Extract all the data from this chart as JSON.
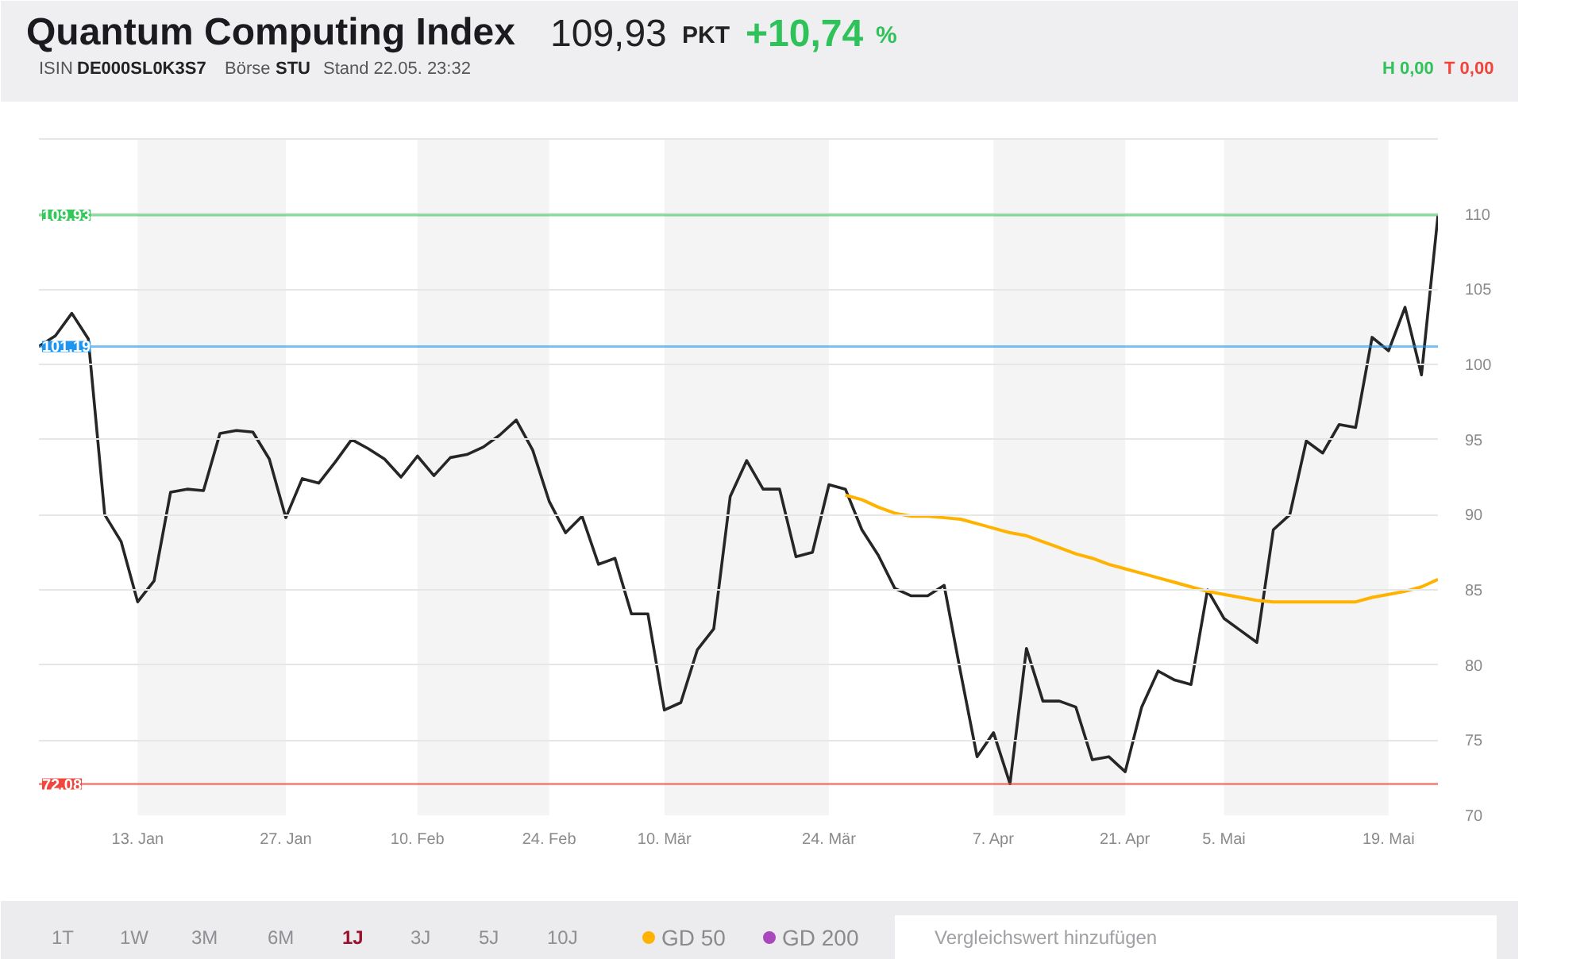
{
  "chart_data": {
    "type": "line",
    "title": "Quantum Computing Index",
    "categories": [
      null,
      null,
      null,
      null,
      null,
      null,
      "13. Jan",
      null,
      null,
      null,
      null,
      null,
      null,
      null,
      null,
      "27. Jan",
      null,
      null,
      null,
      null,
      null,
      null,
      null,
      "10. Feb",
      null,
      null,
      null,
      null,
      null,
      null,
      null,
      "24. Feb",
      null,
      null,
      null,
      null,
      null,
      null,
      "10. Mär",
      null,
      null,
      null,
      null,
      null,
      null,
      null,
      null,
      null,
      "24. Mär",
      null,
      null,
      null,
      null,
      null,
      null,
      null,
      null,
      null,
      "7. Apr",
      null,
      null,
      null,
      null,
      null,
      null,
      null,
      "21. Apr",
      null,
      null,
      null,
      null,
      null,
      "5. Mai",
      null,
      null,
      null,
      null,
      null,
      null,
      null,
      null,
      null,
      "19. Mai",
      null,
      null,
      null
    ],
    "series": [
      {
        "color": "#262626",
        "values": [
          101.2,
          101.9,
          103.4,
          101.7,
          90.0,
          88.2,
          84.2,
          85.6,
          91.5,
          91.7,
          91.6,
          95.4,
          95.6,
          95.5,
          93.7,
          89.8,
          92.4,
          92.1,
          93.5,
          95.0,
          94.4,
          93.7,
          92.5,
          93.9,
          92.6,
          93.8,
          94.0,
          94.5,
          95.3,
          96.3,
          94.3,
          90.9,
          88.8,
          89.9,
          86.7,
          87.1,
          83.4,
          83.4,
          77.0,
          77.5,
          81.0,
          82.4,
          91.2,
          93.6,
          91.7,
          91.7,
          87.2,
          87.5,
          92.0,
          91.7,
          89.0,
          87.3,
          85.1,
          84.6,
          84.6,
          85.3,
          79.5,
          73.9,
          75.5,
          72.1,
          81.1,
          77.6,
          77.6,
          77.2,
          73.7,
          73.9,
          72.9,
          77.2,
          79.6,
          79.0,
          78.7,
          85.0,
          83.1,
          82.3,
          81.5,
          89.0,
          90.0,
          94.9,
          94.1,
          96.0,
          95.8,
          101.8,
          100.9,
          103.8,
          99.3,
          109.9
        ]
      },
      {
        "name": "GD 50",
        "color": "#ffb300",
        "values": [
          null,
          null,
          null,
          null,
          null,
          null,
          null,
          null,
          null,
          null,
          null,
          null,
          null,
          null,
          null,
          null,
          null,
          null,
          null,
          null,
          null,
          null,
          null,
          null,
          null,
          null,
          null,
          null,
          null,
          null,
          null,
          null,
          null,
          null,
          null,
          null,
          null,
          null,
          null,
          null,
          null,
          null,
          null,
          null,
          null,
          null,
          null,
          null,
          null,
          91.3,
          91.0,
          90.5,
          90.1,
          89.9,
          89.9,
          89.8,
          89.7,
          89.4,
          89.1,
          88.8,
          88.6,
          88.2,
          87.8,
          87.4,
          87.1,
          86.7,
          86.4,
          86.1,
          85.8,
          85.5,
          85.2,
          84.9,
          84.7,
          84.5,
          84.3,
          84.2,
          84.2,
          84.2,
          84.2,
          84.2,
          84.2,
          84.5,
          84.7,
          84.9,
          85.2,
          85.7
        ]
      },
      {
        "name": "GD 200",
        "color": "#ab47bc",
        "values": [
          null,
          null,
          null,
          null,
          null,
          null,
          null,
          null,
          null,
          null,
          null,
          null,
          null,
          null,
          null,
          null,
          null,
          null,
          null,
          null,
          null,
          null,
          null,
          null,
          null,
          null,
          null,
          null,
          null,
          null,
          null,
          null,
          null,
          null,
          null,
          null,
          null,
          null,
          null,
          null,
          null,
          null,
          null,
          null,
          null,
          null,
          null,
          null,
          null,
          null,
          null,
          null,
          null,
          null,
          null,
          null,
          null,
          null,
          null,
          null,
          null,
          null,
          null,
          null,
          null,
          null,
          null,
          null,
          null,
          null,
          null,
          null,
          null,
          null,
          null,
          null,
          null,
          null,
          null,
          null,
          null,
          null,
          null,
          null,
          null,
          null
        ]
      }
    ],
    "ylim": [
      70,
      115
    ],
    "yticks": [
      70,
      75,
      80,
      85,
      90,
      95,
      100,
      105,
      110
    ],
    "grid": "y",
    "line_style": "solid",
    "legend": "bottom",
    "ref_lines": [
      {
        "axis": "y",
        "value": 109.93,
        "label": "109,93",
        "color": "#34c759"
      },
      {
        "axis": "y",
        "value": 101.19,
        "label": "101,19",
        "color": "#1e96f0"
      },
      {
        "axis": "y",
        "value": 72.08,
        "label": "72,08",
        "color": "#f2453d"
      }
    ],
    "bands": [
      {
        "axis": "x",
        "from": "13. Jan",
        "to": "27. Jan",
        "color": "#f4f4f4"
      },
      {
        "axis": "x",
        "from": "10. Feb",
        "to": "24. Feb",
        "color": "#f4f4f4"
      },
      {
        "axis": "x",
        "from": "10. Mär",
        "to": "24. Mär",
        "color": "#f4f4f4"
      },
      {
        "axis": "x",
        "from": "7. Apr",
        "to": "21. Apr",
        "color": "#f4f4f4"
      },
      {
        "axis": "x",
        "from": "5. Mai",
        "to": "19. Mai",
        "color": "#f4f4f4"
      }
    ],
    "annotations": [
      "109,93",
      "PKT",
      "+10,74",
      "%",
      "ISIN",
      "DE000SL0K3S7",
      "Börse",
      "STU",
      "Stand 22.05. 23:32",
      "H 0,00",
      "T 0,00",
      "1T",
      "1W",
      "3M",
      "6M",
      "1J",
      "3J",
      "5J",
      "10J",
      "Vergleichswert hinzufügen"
    ]
  }
}
